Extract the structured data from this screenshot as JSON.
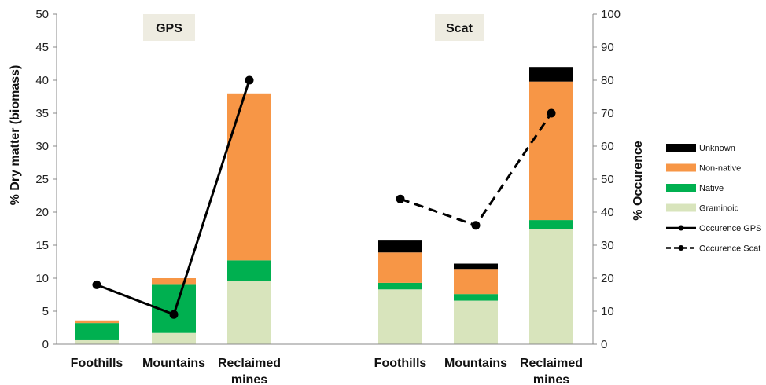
{
  "chart_data": {
    "type": "bar",
    "stacked": true,
    "panels": [
      "GPS",
      "Scat"
    ],
    "categories": [
      "Foothills",
      "Mountains",
      "Reclaimed mines",
      "Foothills",
      "Mountains",
      "Reclaimed mines"
    ],
    "category_panel": [
      0,
      0,
      0,
      1,
      1,
      1
    ],
    "series": [
      {
        "name": "Graminoid",
        "color": "#d8e4bc",
        "values": [
          0.6,
          1.7,
          9.6,
          8.3,
          6.6,
          17.4
        ]
      },
      {
        "name": "Native",
        "color": "#00b050",
        "values": [
          2.6,
          7.3,
          3.1,
          1.0,
          1.0,
          1.4
        ]
      },
      {
        "name": "Non-native",
        "color": "#f79646",
        "values": [
          0.4,
          1.0,
          25.3,
          4.6,
          3.8,
          21.0
        ]
      },
      {
        "name": "Unknown",
        "color": "#000000",
        "values": [
          0,
          0,
          0,
          1.8,
          0.8,
          2.2
        ]
      }
    ],
    "lines": [
      {
        "name": "Occurence GPS",
        "style": "solid",
        "color": "#000000",
        "points": [
          [
            0,
            18
          ],
          [
            1,
            9
          ],
          [
            2,
            80
          ]
        ]
      },
      {
        "name": "Occurence Scat",
        "style": "dashed",
        "color": "#000000",
        "points": [
          [
            3,
            44
          ],
          [
            4,
            36
          ],
          [
            5,
            70
          ]
        ]
      }
    ],
    "ylabel": "% Dry matter (biomass)",
    "y2label": "% Occurence",
    "ylim": [
      0,
      50
    ],
    "y2lim": [
      0,
      100
    ],
    "yticks": [
      0,
      5,
      10,
      15,
      20,
      25,
      30,
      35,
      40,
      45,
      50
    ],
    "y2ticks": [
      0,
      10,
      20,
      30,
      40,
      50,
      60,
      70,
      80,
      90,
      100
    ],
    "legend_order": [
      "Unknown",
      "Non-native",
      "Native",
      "Graminoid",
      "Occurence GPS",
      "Occurence Scat"
    ],
    "legend_position": "right",
    "grid": false
  }
}
